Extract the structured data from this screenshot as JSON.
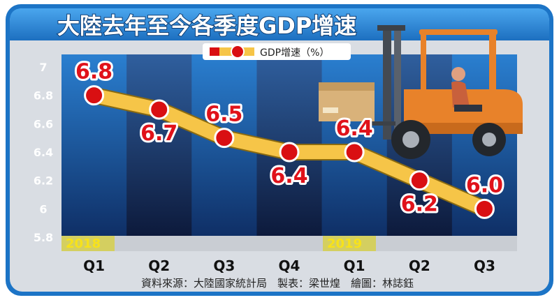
{
  "title": "大陸去年至今各季度GDP增速",
  "legend_label": "GDP增速（%）",
  "source_text": "資料來源：大陸國家統計局　製表：梁世煌　繪圖：林誌鈺",
  "year_labels": [
    "2018",
    "2019"
  ],
  "colors": {
    "frame_blue": "#1c74c6",
    "title_bar": "#2d89d8",
    "plot_bg_dark": "#08122c",
    "plot_bg_band": "#1b5aa0",
    "line_fill": "#f6c548",
    "marker_red": "#d90f12",
    "label_red": "#e0121a",
    "year_yellow": "#f7e21a",
    "forklift_orange": "#e8822a"
  },
  "icons": [
    "forklift-icon",
    "box-icon"
  ],
  "chart_data": {
    "type": "line",
    "title": "大陸去年至今各季度GDP增速",
    "categories": [
      "Q1",
      "Q2",
      "Q3",
      "Q4",
      "Q1",
      "Q2",
      "Q3"
    ],
    "series": [
      {
        "name": "GDP增速（%）",
        "values": [
          6.8,
          6.7,
          6.5,
          6.4,
          6.4,
          6.2,
          6.0
        ]
      }
    ],
    "data_labels": [
      "6.8",
      "6.7",
      "6.5",
      "6.4",
      "6.4",
      "6.2",
      "6.0"
    ],
    "yticks": [
      "7",
      "6.8",
      "6.6",
      "6.4",
      "6.2",
      "6",
      "5.8"
    ],
    "ylim": [
      5.8,
      7.0
    ],
    "grid": false,
    "legend": "top-center"
  }
}
